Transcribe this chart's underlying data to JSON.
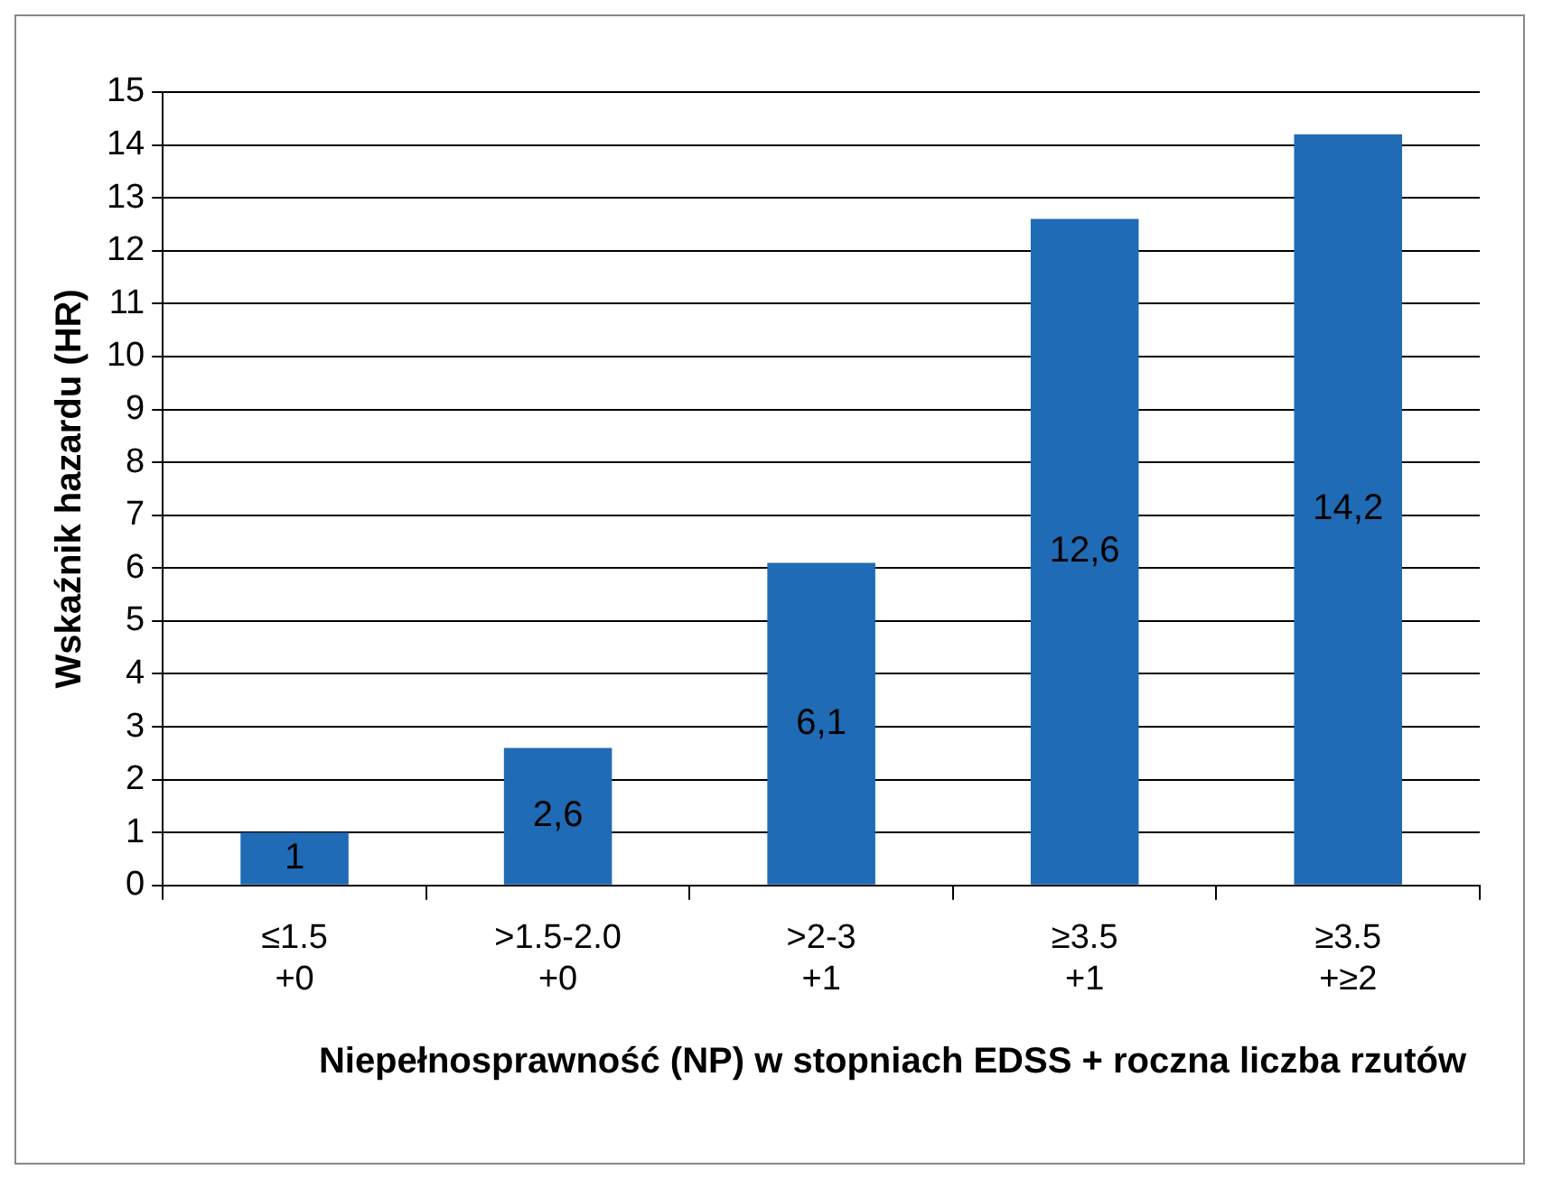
{
  "chart_data": {
    "type": "bar",
    "xlabel": "Niepełnosprawność (NP) w stopniach EDSS + roczna liczba rzutów",
    "ylabel": "Wskaźnik hazardu (HR)",
    "categories": [
      "≤1.5\n+0",
      ">1.5-2.0\n+0",
      ">2-3\n+1",
      "≥3.5\n+1",
      "≥3.5\n+≥2"
    ],
    "values": [
      1,
      2.6,
      6.1,
      12.6,
      14.2
    ],
    "color": "#1f6bb5",
    "value_labels": [
      "1",
      "2,6",
      "6,1",
      "12,6",
      "14,2"
    ],
    "ylim": [
      0,
      15
    ],
    "yticks": [
      0,
      1,
      2,
      3,
      4,
      5,
      6,
      7,
      8,
      9,
      10,
      11,
      12,
      13,
      14,
      15
    ],
    "grid": "y"
  }
}
